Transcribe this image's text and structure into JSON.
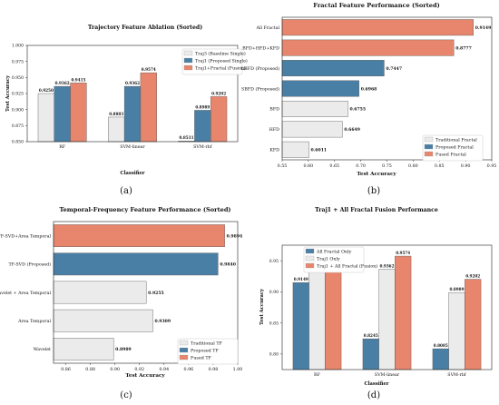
{
  "chart_data": [
    {
      "panel": "(a)",
      "type": "bar",
      "title": "Trajectory Feature Ablation (Sorted)",
      "xlabel": "Classifier",
      "ylabel": "Test Accuracy",
      "ylim": [
        0.85,
        1.0
      ],
      "yticks": [
        "0.850",
        "0.875",
        "0.900",
        "0.925",
        "0.950",
        "0.975",
        "1.000"
      ],
      "categories": [
        "RF",
        "SVM-linear",
        "SVM-rbf"
      ],
      "legend": "top-right",
      "series": [
        {
          "name": "Traj3 (Baseline Single)",
          "color": "#ebebeb",
          "values": [
            0.925,
            0.8883,
            0.8511
          ],
          "labels": [
            "0.9250",
            "0.8883",
            "0.8511"
          ]
        },
        {
          "name": "Traj1 (Proposed Single)",
          "color": "#4a7fa5",
          "values": [
            0.9362,
            0.9362,
            0.8989
          ],
          "labels": [
            "0.9362",
            "0.9362",
            "0.8989"
          ]
        },
        {
          "name": "Traj1+Fractal (Fusion)",
          "color": "#e8856d",
          "values": [
            0.9415,
            0.9574,
            0.9202
          ],
          "labels": [
            "0.9415",
            "0.9574",
            "0.9202"
          ]
        }
      ]
    },
    {
      "panel": "(b)",
      "type": "hbar",
      "title": "Fractal Feature Performance (Sorted)",
      "xlabel": "Test Accuracy",
      "xlim": [
        0.55,
        0.95
      ],
      "xticks": [
        "0.55",
        "0.60",
        "0.65",
        "0.70",
        "0.75",
        "0.80",
        "0.85",
        "0.90",
        "0.95"
      ],
      "categories": [
        "All Fractal",
        "BFD+HFD+KFD",
        "LHFD (Proposed)",
        "SBFD (Proposed)",
        "BFD",
        "HFD",
        "KFD"
      ],
      "values": [
        0.9149,
        0.8777,
        0.7447,
        0.6968,
        0.6755,
        0.6649,
        0.6011
      ],
      "labels": [
        "0.9149",
        "0.8777",
        "0.7447",
        "0.6968",
        "0.6755",
        "0.6649",
        "0.6011"
      ],
      "groups": [
        "fused",
        "fused",
        "proposed",
        "proposed",
        "traditional",
        "traditional",
        "traditional"
      ],
      "legend": "bottom-right",
      "legend_items": [
        {
          "name": "Traditional Fractal",
          "color": "#ebebeb"
        },
        {
          "name": "Proposed Fractal",
          "color": "#4a7fa5"
        },
        {
          "name": "Fused Fractal",
          "color": "#e8856d"
        }
      ]
    },
    {
      "panel": "(c)",
      "type": "hbar",
      "title": "Temporal-Frequency Feature Performance (Sorted)",
      "xlabel": "Test Accuracy",
      "xlim": [
        0.85,
        1.0
      ],
      "xticks": [
        "0.86",
        "0.88",
        "0.90",
        "0.92",
        "0.94",
        "0.96",
        "0.98",
        "1.00"
      ],
      "categories": [
        "TF-SVD+Area Temporal",
        "TF-SVD (Proposed)",
        "Wavelet + Area Temporal",
        "Area Temporal",
        "Wavelet"
      ],
      "values": [
        0.9894,
        0.984,
        0.9255,
        0.9309,
        0.8989
      ],
      "labels": [
        "0.9894",
        "0.9840",
        "0.9255",
        "0.9309",
        "0.8989"
      ],
      "groups": [
        "fused",
        "proposed",
        "traditional",
        "traditional",
        "traditional"
      ],
      "legend": "bottom-right",
      "legend_items": [
        {
          "name": "Traditional TF",
          "color": "#ebebeb"
        },
        {
          "name": "Proposed TF",
          "color": "#4a7fa5"
        },
        {
          "name": "Fused TF",
          "color": "#e8856d"
        }
      ]
    },
    {
      "panel": "(d)",
      "type": "bar",
      "title": "Traj1 + All Fractal Fusion Performance",
      "xlabel": "Classifier",
      "ylabel": "Test Accuracy",
      "ylim": [
        0.775,
        0.975
      ],
      "yticks": [
        "0.80",
        "0.85",
        "0.90",
        "0.95"
      ],
      "categories": [
        "RF",
        "SVM-linear",
        "SVM-rbf"
      ],
      "legend": "top-left",
      "series": [
        {
          "name": "All Fractal Only",
          "color": "#4a7fa5",
          "values": [
            0.9149,
            0.8245,
            0.8085
          ],
          "labels": [
            "0.9149",
            "0.8245",
            "0.8085"
          ]
        },
        {
          "name": "Traj1 Only",
          "color": "#ebebeb",
          "values": [
            0.9362,
            0.9362,
            0.8989
          ],
          "labels": [
            "0.9362",
            "0.9362",
            "0.8989"
          ]
        },
        {
          "name": "Traj1 + All Fractal (Fusion)",
          "color": "#e8856d",
          "values": [
            0.9415,
            0.9574,
            0.9202
          ],
          "labels": [
            "0.9415",
            "0.9574",
            "0.9202"
          ]
        }
      ]
    }
  ]
}
